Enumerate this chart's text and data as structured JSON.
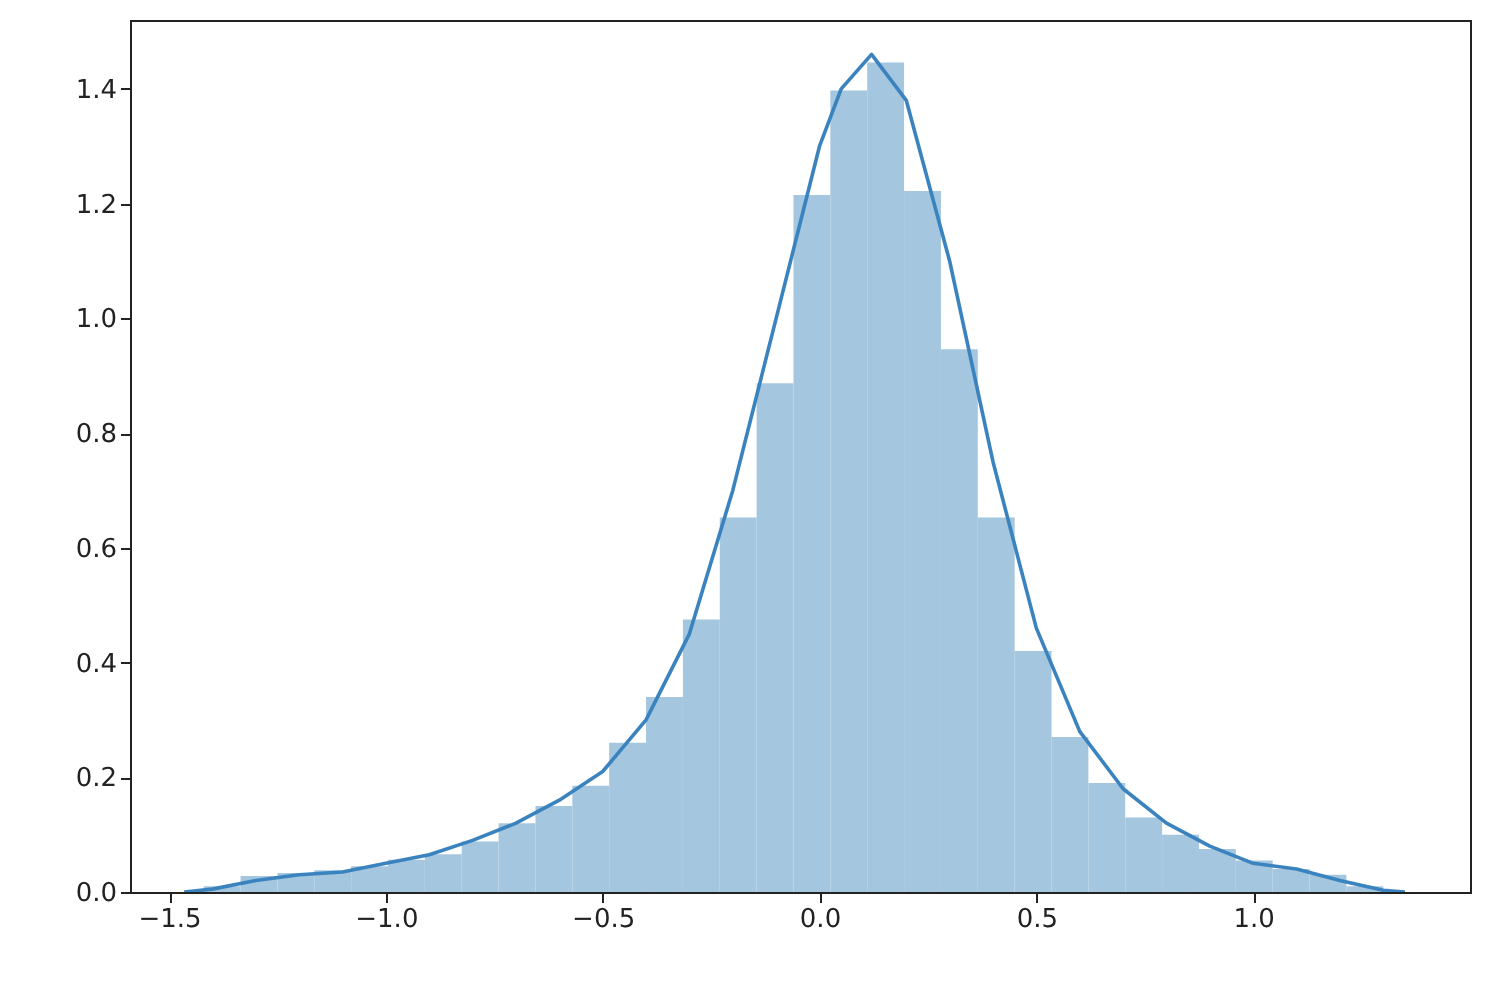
{
  "chart_data": {
    "type": "histogram",
    "bins": [
      -1.42,
      -1.335,
      -1.25,
      -1.165,
      -1.08,
      -0.995,
      -0.91,
      -0.825,
      -0.74,
      -0.655,
      -0.57,
      -0.485,
      -0.4,
      -0.315,
      -0.23,
      -0.145,
      -0.06,
      0.025,
      0.11,
      0.195,
      0.28,
      0.365,
      0.45,
      0.535,
      0.62,
      0.705,
      0.79,
      0.875,
      0.96,
      1.045,
      1.13,
      1.215,
      1.3
    ],
    "values": [
      0.01,
      0.028,
      0.033,
      0.038,
      0.045,
      0.056,
      0.066,
      0.088,
      0.12,
      0.15,
      0.185,
      0.26,
      0.34,
      0.475,
      0.653,
      0.887,
      1.215,
      1.397,
      1.446,
      1.222,
      0.946,
      0.653,
      0.42,
      0.27,
      0.19,
      0.13,
      0.1,
      0.075,
      0.055,
      0.04,
      0.03,
      0.01
    ],
    "color": "#a4c6df",
    "series": [
      {
        "type": "line",
        "color": "#3a83be",
        "x": [
          -1.465,
          -1.4,
          -1.3,
          -1.2,
          -1.1,
          -1.0,
          -0.9,
          -0.8,
          -0.7,
          -0.6,
          -0.5,
          -0.4,
          -0.3,
          -0.2,
          -0.1,
          0.0,
          0.05,
          0.12,
          0.2,
          0.3,
          0.4,
          0.5,
          0.6,
          0.7,
          0.8,
          0.9,
          1.0,
          1.1,
          1.2,
          1.3,
          1.35
        ],
        "values": [
          0,
          0.005,
          0.02,
          0.03,
          0.035,
          0.05,
          0.065,
          0.09,
          0.12,
          0.16,
          0.21,
          0.3,
          0.45,
          0.7,
          1.0,
          1.3,
          1.4,
          1.46,
          1.38,
          1.1,
          0.75,
          0.46,
          0.28,
          0.18,
          0.12,
          0.08,
          0.05,
          0.04,
          0.02,
          0.003,
          0
        ]
      }
    ],
    "xlim": [
      -1.59,
      1.5
    ],
    "ylim": [
      0,
      1.52
    ],
    "xticks": [
      -1.5,
      {
        "value": -1,
        "label": "−1.0"
      },
      -0.5,
      {
        "value": 0,
        "label": "0.0"
      },
      0.5,
      {
        "value": 1,
        "label": "1.0"
      }
    ],
    "yticks": [
      {
        "value": 0,
        "label": "0.0"
      },
      0.2,
      0.4,
      0.6,
      0.8,
      {
        "value": 1,
        "label": "1.0"
      },
      1.2,
      1.4
    ],
    "grid": false
  }
}
